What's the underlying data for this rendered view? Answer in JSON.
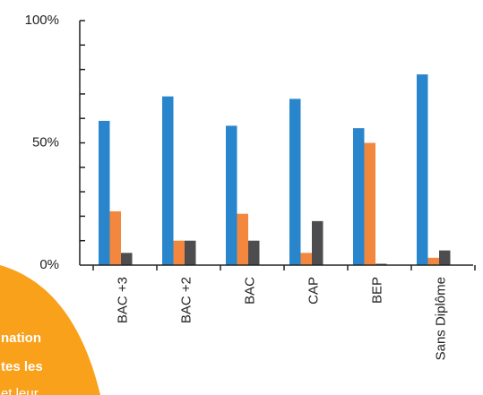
{
  "chart_data": {
    "type": "bar",
    "categories": [
      "BAC +3",
      "BAC +2",
      "BAC",
      "CAP",
      "BEP",
      "Sans Diplôme"
    ],
    "series": [
      {
        "values": [
          59,
          69,
          57,
          68,
          56,
          78
        ],
        "color": "#2986CC"
      },
      {
        "values": [
          22,
          10,
          21,
          5,
          50,
          3
        ],
        "color": "#F4873E"
      },
      {
        "values": [
          5,
          10,
          10,
          18,
          0,
          6
        ],
        "color": "#4D4D4F"
      }
    ],
    "ylim": [
      0,
      100
    ],
    "y_tick_labels": [
      "0%",
      "50%",
      "100%"
    ],
    "y_tick_values": [
      0,
      50,
      100
    ],
    "minor_tick_step": 10,
    "title": "",
    "xlabel": "",
    "ylabel": ""
  },
  "badge": {
    "lines": [
      "nation",
      "tes les",
      "et leur"
    ],
    "color": "#F9A11B"
  }
}
